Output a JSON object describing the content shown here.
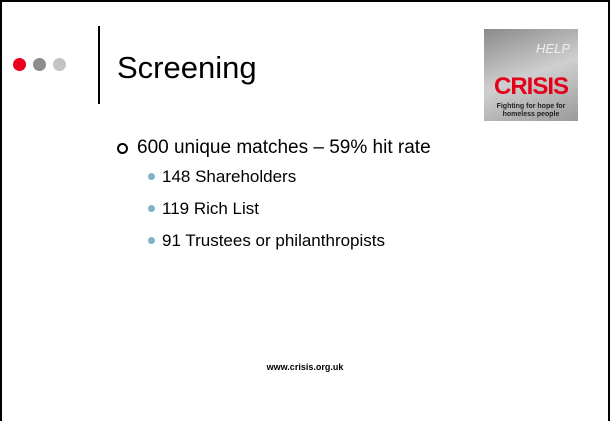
{
  "slide": {
    "title": "Screening",
    "logo": {
      "help": "HELP",
      "name": "CRISIS",
      "tagline": [
        "Fighting for hope for",
        "homeless people"
      ]
    },
    "bullets": [
      {
        "text": "600 unique matches – 59% hit rate",
        "sub": [
          "148 Shareholders",
          "119 Rich List",
          "91 Trustees or philanthropists"
        ]
      }
    ],
    "footer": "www.crisis.org.uk"
  }
}
